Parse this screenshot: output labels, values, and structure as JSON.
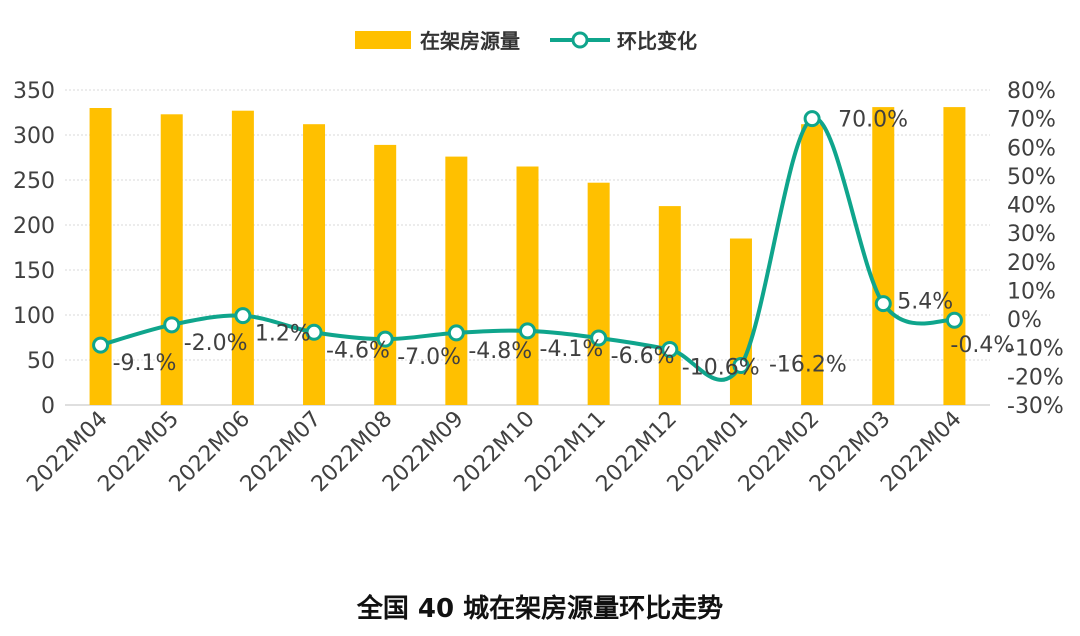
{
  "chart_data": {
    "type": "bar",
    "title": "全国 40 城在架房源量环比走势",
    "categories": [
      "2022M04",
      "2022M05",
      "2022M06",
      "2022M07",
      "2022M08",
      "2022M09",
      "2022M10",
      "2022M11",
      "2022M12",
      "2022M01",
      "2022M02",
      "2022M03",
      "2022M04"
    ],
    "series": [
      {
        "name": "在架房源量",
        "type": "bar",
        "axis": "left",
        "color": "#FFC000",
        "values": [
          330,
          323,
          327,
          312,
          289,
          276,
          265,
          247,
          221,
          185,
          312,
          331,
          331
        ]
      },
      {
        "name": "环比变化",
        "type": "line",
        "axis": "right",
        "color": "#0FA58C",
        "values": [
          -9.1,
          -2.0,
          1.2,
          -4.6,
          -7.0,
          -4.8,
          -4.1,
          -6.6,
          -10.6,
          -16.2,
          70.0,
          5.4,
          -0.4
        ],
        "labels": [
          "-9.1%",
          "-2.0%",
          "1.2%",
          "-4.6%",
          "-7.0%",
          "-4.8%",
          "-4.1%",
          "-6.6%",
          "-10.6%",
          "-16.2%",
          "70.0%",
          "5.4%",
          "-0.4%"
        ]
      }
    ],
    "y_left": {
      "min": 0,
      "max": 350,
      "ticks": [
        "0",
        "50",
        "100",
        "150",
        "200",
        "250",
        "300",
        "350"
      ]
    },
    "y_right": {
      "min": -30,
      "max": 80,
      "ticks": [
        "-30%",
        "-20%",
        "-10%",
        "0%",
        "10%",
        "20%",
        "30%",
        "40%",
        "50%",
        "60%",
        "70%",
        "80%"
      ]
    },
    "grid": true,
    "legend_position": "top-center"
  }
}
